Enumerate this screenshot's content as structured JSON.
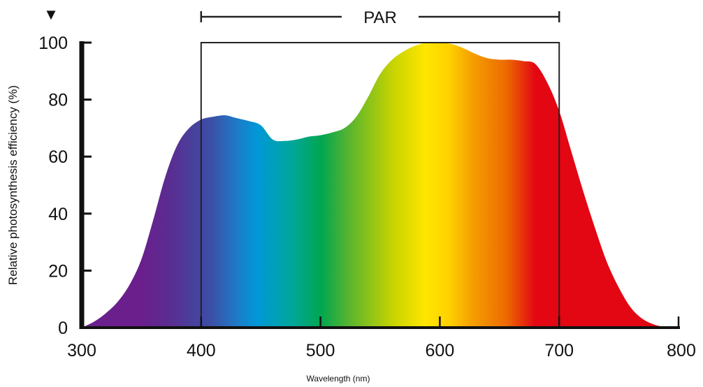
{
  "chart_data": {
    "type": "area",
    "title": "",
    "xlabel": "Wavelength (nm)",
    "ylabel": "Relative photosynthesis efficiency (%)",
    "xlim": [
      300,
      800
    ],
    "ylim": [
      0,
      100
    ],
    "x_ticks": [
      "300",
      "400",
      "500",
      "600",
      "700",
      "800"
    ],
    "y_ticks": [
      "0",
      "20",
      "40",
      "60",
      "80",
      "100"
    ],
    "grid": false,
    "legend": "none",
    "series": [
      {
        "x": [
          300,
          310,
          320,
          330,
          340,
          350,
          360,
          370,
          380,
          390,
          400,
          410,
          420,
          430,
          440,
          450,
          460,
          470,
          480,
          490,
          500,
          510,
          520,
          530,
          540,
          550,
          560,
          570,
          580,
          590,
          600,
          610,
          620,
          630,
          640,
          650,
          660,
          670,
          680,
          690,
          700,
          710,
          720,
          730,
          740,
          750,
          760,
          770,
          780,
          790
        ],
        "y": [
          0,
          2,
          5,
          9,
          15,
          24,
          38,
          53,
          64,
          70,
          73,
          74,
          74.5,
          73.5,
          72.5,
          71,
          66,
          65.5,
          66,
          67,
          67.5,
          68.5,
          70,
          74,
          81,
          89,
          94,
          97,
          99,
          100,
          100,
          99.5,
          98,
          96,
          94.5,
          94,
          94,
          93.5,
          92.5,
          86,
          76,
          62,
          48,
          35,
          23,
          14,
          7,
          3,
          1,
          0
        ]
      }
    ],
    "annotations": [
      {
        "label": "PAR",
        "x_range": [
          400,
          700
        ]
      }
    ],
    "spectrum_colors": [
      "#6a1f8c",
      "#5a2d91",
      "#3b4fa6",
      "#1e7bc8",
      "#0098d8",
      "#00a79a",
      "#00a650",
      "#5bb52e",
      "#c8d400",
      "#ffe600",
      "#ffd200",
      "#f5a000",
      "#ec6a00",
      "#e30613"
    ],
    "marker_symbol": "▼"
  }
}
